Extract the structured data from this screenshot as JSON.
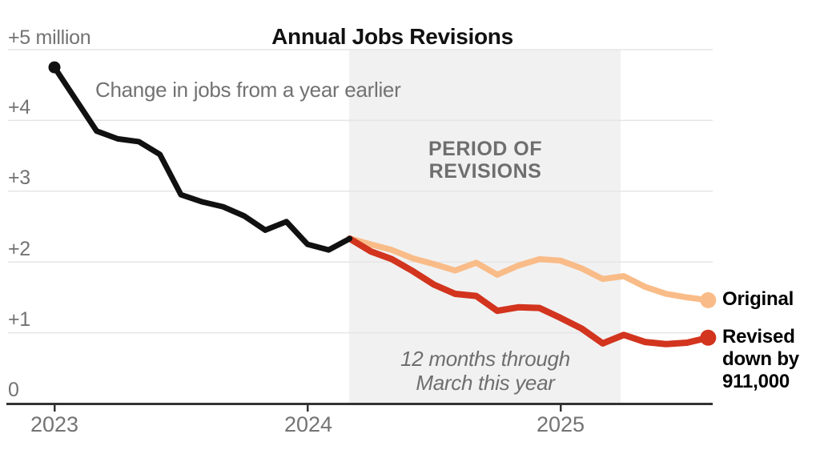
{
  "title": "Annual Jobs Revisions",
  "subtitle": "Change in jobs from a year earlier",
  "legend": {
    "original_label": "Original",
    "revised_lines": [
      "Revised",
      "down by",
      "911,000"
    ]
  },
  "colors": {
    "reported_line": "#111111",
    "original_line": "#F9BC88",
    "revised_line": "#D2341E",
    "shading": "#F1F1F1",
    "gridline": "#E5E5E5",
    "axis": "#333333",
    "muted_text": "#737373"
  },
  "chart_data": {
    "type": "line",
    "title": "Annual Jobs Revisions",
    "subtitle": "Change in jobs from a year earlier",
    "ylabel": "Change in jobs from a year earlier, millions",
    "x_start": "2023-01",
    "x_step": "1 month",
    "ylim": [
      0,
      5
    ],
    "grid": true,
    "y_axis": {
      "ticks": [
        {
          "label": "+5 million",
          "value": 5
        },
        {
          "label": "+4",
          "value": 4
        },
        {
          "label": "+3",
          "value": 3
        },
        {
          "label": "+2",
          "value": 2
        },
        {
          "label": "+1",
          "value": 1
        },
        {
          "label": "0",
          "value": 0
        }
      ]
    },
    "x_axis": {
      "ticks": [
        {
          "label": "2023",
          "month_index": 0
        },
        {
          "label": "2024",
          "month_index": 12
        },
        {
          "label": "2025",
          "month_index": 24
        }
      ]
    },
    "series": [
      {
        "name": "reported",
        "color": "#111111",
        "start_month_index": 0,
        "values": [
          4.75,
          4.3,
          3.85,
          3.74,
          3.7,
          3.52,
          2.95,
          2.85,
          2.78,
          2.65,
          2.45,
          2.57,
          2.25,
          2.17,
          2.33
        ]
      },
      {
        "name": "Original",
        "color": "#F9BC88",
        "start_month_index": 14,
        "values": [
          2.33,
          2.25,
          2.17,
          2.05,
          1.97,
          1.88,
          1.99,
          1.82,
          1.95,
          2.04,
          2.02,
          1.91,
          1.76,
          1.8,
          1.65,
          1.55,
          1.5,
          1.46
        ]
      },
      {
        "name": "Revised",
        "color": "#D2341E",
        "start_month_index": 14,
        "values": [
          2.33,
          2.15,
          2.04,
          1.87,
          1.68,
          1.55,
          1.52,
          1.31,
          1.36,
          1.35,
          1.21,
          1.06,
          0.85,
          0.97,
          0.87,
          0.84,
          0.86,
          0.93
        ]
      }
    ],
    "revision_period": {
      "label_lines": [
        "PERIOD OF",
        "REVISIONS"
      ],
      "start_month_index": 13.97,
      "end_month_index": 26.85
    },
    "annotation_lines": [
      "12 months through",
      "March this year"
    ]
  }
}
